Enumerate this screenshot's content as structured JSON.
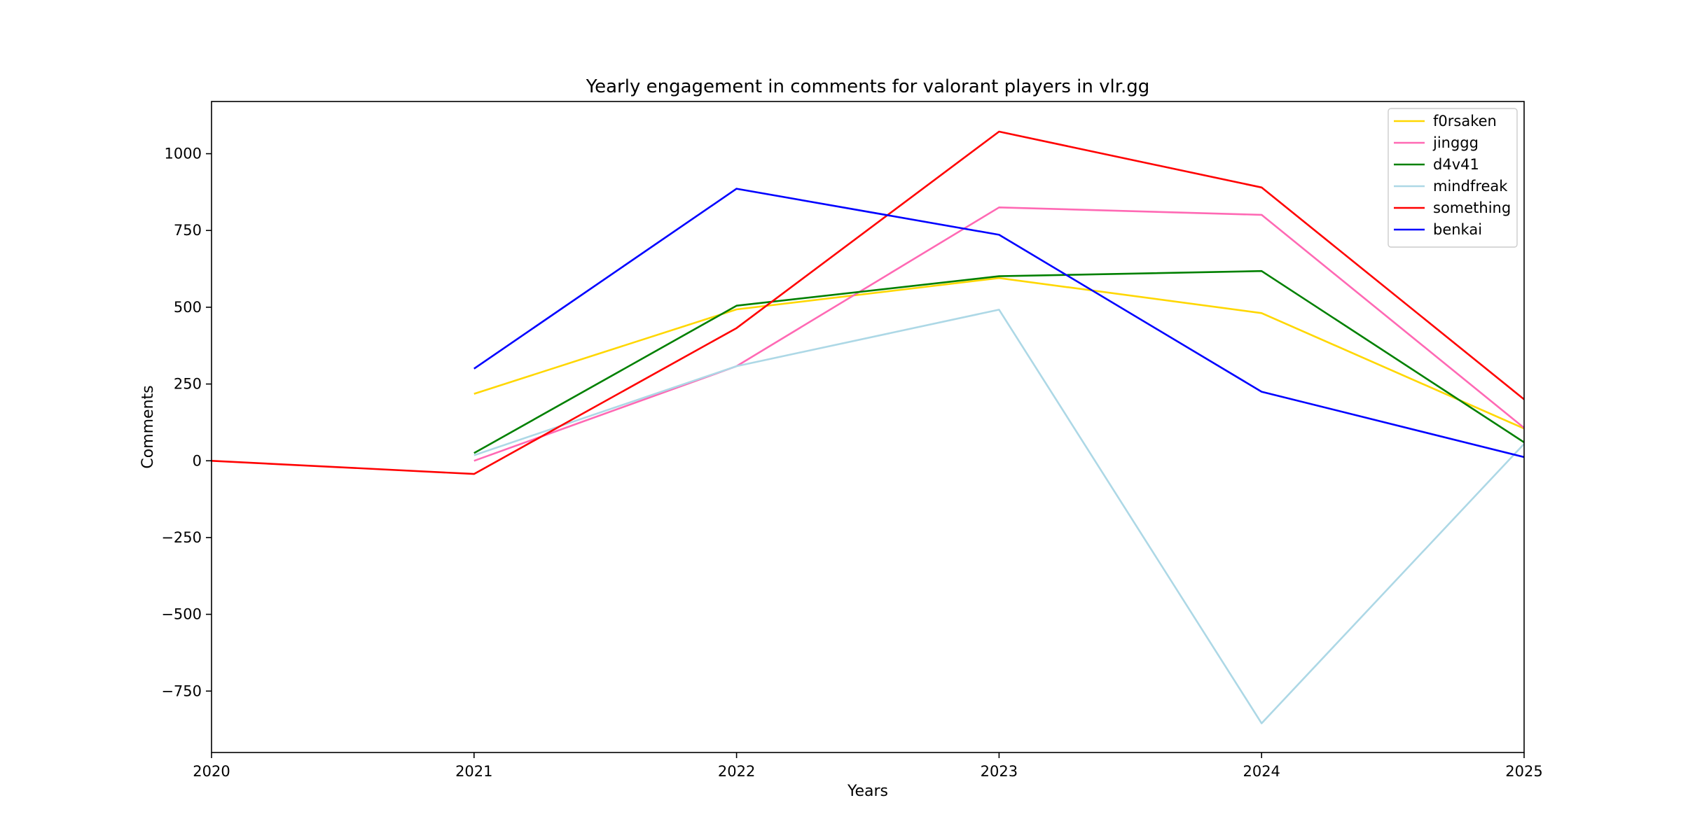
{
  "chart_data": {
    "type": "line",
    "title": "Yearly engagement in comments for valorant players in vlr.gg",
    "xlabel": "Years",
    "ylabel": "Comments",
    "x": [
      2020,
      2021,
      2022,
      2023,
      2024,
      2025
    ],
    "xlim": [
      2020,
      2025
    ],
    "ylim": [
      -950,
      1170
    ],
    "xticks": [
      "2020",
      "2021",
      "2022",
      "2023",
      "2024",
      "2025"
    ],
    "yticks": [
      -750,
      -500,
      -250,
      0,
      250,
      500,
      750,
      1000
    ],
    "ytick_labels": [
      "−750",
      "−500",
      "−250",
      "0",
      "250",
      "500",
      "750",
      "1000"
    ],
    "grid": false,
    "legend_position": "top-right",
    "series": [
      {
        "name": "f0rsaken",
        "color": "#FFD700",
        "values": [
          null,
          218,
          493,
          595,
          481,
          105
        ]
      },
      {
        "name": "jinggg",
        "color": "#FF69B4",
        "values": [
          null,
          0,
          308,
          825,
          801,
          107
        ]
      },
      {
        "name": "d4v41",
        "color": "#008000",
        "values": [
          null,
          25,
          505,
          601,
          618,
          60
        ]
      },
      {
        "name": "mindfreak",
        "color": "#ADD8E6",
        "values": [
          null,
          18,
          308,
          492,
          -855,
          55
        ]
      },
      {
        "name": "something",
        "color": "#FF0000",
        "values": [
          0,
          -43,
          432,
          1072,
          890,
          200
        ]
      },
      {
        "name": "benkai",
        "color": "#0000FF",
        "values": [
          null,
          300,
          886,
          736,
          225,
          12
        ]
      }
    ]
  }
}
